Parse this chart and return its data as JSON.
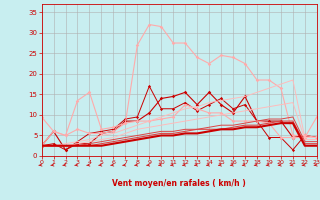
{
  "background_color": "#c8eef0",
  "grid_color": "#b0b0b0",
  "xlabel": "Vent moyen/en rafales ( km/h )",
  "xlabel_color": "#cc0000",
  "tick_color": "#cc0000",
  "x_ticks": [
    0,
    1,
    2,
    3,
    4,
    5,
    6,
    7,
    8,
    9,
    10,
    11,
    12,
    13,
    14,
    15,
    16,
    17,
    18,
    19,
    20,
    21,
    22,
    23
  ],
  "ylim": [
    0,
    37
  ],
  "xlim": [
    0,
    23
  ],
  "y_ticks": [
    0,
    5,
    10,
    15,
    20,
    25,
    30,
    35
  ],
  "lines": [
    {
      "x": [
        0,
        1,
        2,
        3,
        4,
        5,
        6,
        7,
        8,
        9,
        10,
        11,
        12,
        13,
        14,
        15,
        16,
        17,
        18,
        19,
        20,
        21,
        22,
        23
      ],
      "y": [
        2.5,
        6.0,
        1.5,
        3.0,
        3.0,
        5.5,
        6.0,
        8.5,
        8.5,
        10.5,
        14.0,
        14.5,
        15.5,
        12.5,
        15.5,
        12.5,
        10.5,
        14.5,
        8.5,
        8.5,
        8.5,
        4.5,
        5.0,
        4.5
      ],
      "color": "#cc0000",
      "linewidth": 0.8,
      "marker": "D",
      "markersize": 1.8
    },
    {
      "x": [
        0,
        1,
        2,
        3,
        4,
        5,
        6,
        7,
        8,
        9,
        10,
        11,
        12,
        13,
        14,
        15,
        16,
        17,
        18,
        19,
        20,
        21,
        22,
        23
      ],
      "y": [
        2.5,
        3.0,
        1.5,
        3.5,
        5.5,
        6.0,
        6.5,
        9.0,
        9.5,
        17.0,
        11.5,
        11.5,
        13.0,
        11.0,
        12.5,
        14.0,
        11.5,
        12.5,
        8.5,
        4.5,
        4.5,
        1.5,
        5.0,
        4.5
      ],
      "color": "#cc0000",
      "linewidth": 0.7,
      "marker": "D",
      "markersize": 1.6
    },
    {
      "x": [
        0,
        1,
        2,
        3,
        4,
        5,
        6,
        7,
        8,
        9,
        10,
        11,
        12,
        13,
        14,
        15,
        16,
        17,
        18,
        19,
        20,
        21,
        22,
        23
      ],
      "y": [
        9.5,
        6.0,
        5.0,
        6.5,
        5.5,
        5.5,
        6.0,
        8.0,
        8.5,
        8.5,
        9.0,
        9.5,
        12.5,
        11.5,
        10.5,
        10.5,
        8.5,
        8.5,
        8.5,
        8.0,
        4.5,
        4.5,
        4.5,
        9.5
      ],
      "color": "#ffaaaa",
      "linewidth": 0.8,
      "marker": "D",
      "markersize": 1.8
    },
    {
      "x": [
        0,
        1,
        2,
        3,
        4,
        5,
        6,
        7,
        8,
        9,
        10,
        11,
        12,
        13,
        14,
        15,
        16,
        17,
        18,
        19,
        20,
        21,
        22,
        23
      ],
      "y": [
        2.5,
        6.0,
        5.0,
        13.5,
        15.5,
        6.5,
        7.0,
        8.0,
        27.0,
        32.0,
        31.5,
        27.5,
        27.5,
        24.0,
        22.5,
        24.5,
        24.0,
        22.5,
        18.5,
        18.5,
        16.5,
        5.0,
        5.0,
        4.5
      ],
      "color": "#ffaaaa",
      "linewidth": 0.8,
      "marker": "D",
      "markersize": 1.8
    },
    {
      "x": [
        0,
        1,
        2,
        3,
        4,
        5,
        6,
        7,
        8,
        9,
        10,
        11,
        12,
        13,
        14,
        15,
        16,
        17,
        18,
        19,
        20,
        21,
        22,
        23
      ],
      "y": [
        2.5,
        2.5,
        3.0,
        3.5,
        4.0,
        5.0,
        5.5,
        6.5,
        7.5,
        8.5,
        9.5,
        10.5,
        11.5,
        12.0,
        13.0,
        13.5,
        14.0,
        14.5,
        15.5,
        16.5,
        17.5,
        18.5,
        4.5,
        4.5
      ],
      "color": "#ffbbbb",
      "linewidth": 0.7,
      "marker": null,
      "markersize": 0
    },
    {
      "x": [
        0,
        1,
        2,
        3,
        4,
        5,
        6,
        7,
        8,
        9,
        10,
        11,
        12,
        13,
        14,
        15,
        16,
        17,
        18,
        19,
        20,
        21,
        22,
        23
      ],
      "y": [
        2.5,
        2.5,
        2.5,
        3.0,
        3.5,
        4.0,
        4.5,
        5.5,
        6.5,
        7.0,
        7.5,
        8.0,
        8.5,
        9.0,
        9.5,
        10.0,
        10.5,
        11.0,
        11.5,
        12.0,
        12.5,
        13.0,
        4.0,
        4.0
      ],
      "color": "#ffbbbb",
      "linewidth": 0.7,
      "marker": null,
      "markersize": 0
    },
    {
      "x": [
        0,
        1,
        2,
        3,
        4,
        5,
        6,
        7,
        8,
        9,
        10,
        11,
        12,
        13,
        14,
        15,
        16,
        17,
        18,
        19,
        20,
        21,
        22,
        23
      ],
      "y": [
        2.5,
        2.5,
        2.5,
        2.5,
        3.0,
        3.5,
        4.0,
        4.5,
        5.0,
        5.5,
        6.0,
        6.0,
        6.5,
        6.5,
        7.0,
        7.5,
        7.5,
        8.0,
        8.5,
        9.0,
        9.0,
        9.5,
        3.5,
        3.5
      ],
      "color": "#dd4444",
      "linewidth": 0.7,
      "marker": null,
      "markersize": 0
    },
    {
      "x": [
        0,
        1,
        2,
        3,
        4,
        5,
        6,
        7,
        8,
        9,
        10,
        11,
        12,
        13,
        14,
        15,
        16,
        17,
        18,
        19,
        20,
        21,
        22,
        23
      ],
      "y": [
        2.5,
        2.5,
        2.5,
        2.5,
        2.5,
        3.0,
        3.5,
        4.0,
        4.5,
        5.0,
        5.5,
        5.5,
        6.0,
        6.5,
        6.5,
        6.5,
        7.0,
        7.5,
        7.5,
        8.0,
        8.5,
        8.5,
        3.0,
        3.0
      ],
      "color": "#dd4444",
      "linewidth": 0.8,
      "marker": null,
      "markersize": 0
    },
    {
      "x": [
        0,
        1,
        2,
        3,
        4,
        5,
        6,
        7,
        8,
        9,
        10,
        11,
        12,
        13,
        14,
        15,
        16,
        17,
        18,
        19,
        20,
        21,
        22,
        23
      ],
      "y": [
        2.5,
        2.5,
        2.5,
        2.5,
        2.5,
        2.5,
        3.0,
        3.5,
        4.0,
        4.5,
        5.0,
        5.0,
        5.5,
        5.5,
        6.0,
        6.5,
        6.5,
        7.0,
        7.0,
        7.5,
        8.0,
        8.0,
        2.5,
        2.5
      ],
      "color": "#cc0000",
      "linewidth": 1.5,
      "marker": null,
      "markersize": 0
    }
  ]
}
